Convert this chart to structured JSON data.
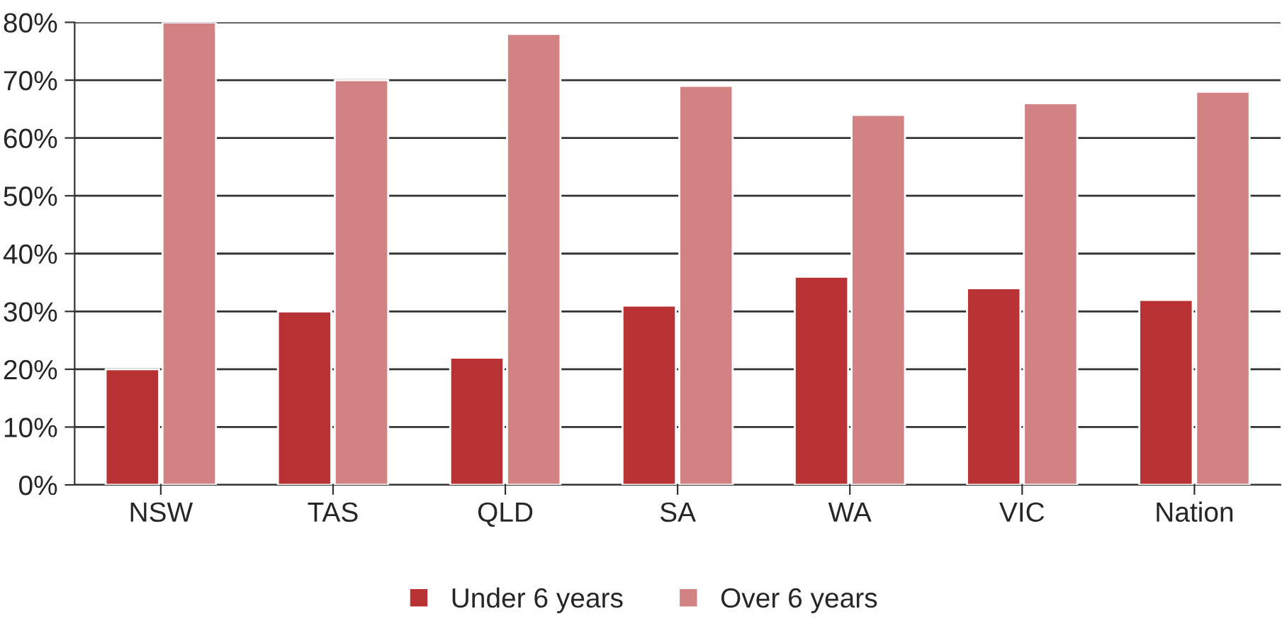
{
  "chart_data": {
    "type": "bar",
    "categories": [
      "NSW",
      "TAS",
      "QLD",
      "SA",
      "WA",
      "VIC",
      "Nation"
    ],
    "series": [
      {
        "name": "Under 6 years",
        "color": "#b83234",
        "values": [
          20,
          30,
          22,
          31,
          36,
          34,
          32
        ]
      },
      {
        "name": "Over 6 years",
        "color": "#d28282",
        "values": [
          80,
          70,
          78,
          69,
          64,
          66,
          68
        ]
      }
    ],
    "ylim": [
      0,
      80
    ],
    "yticks": [
      {
        "value": 0,
        "label": "0%"
      },
      {
        "value": 10,
        "label": "10%"
      },
      {
        "value": 20,
        "label": "20%"
      },
      {
        "value": 30,
        "label": "30%"
      },
      {
        "value": 40,
        "label": "40%"
      },
      {
        "value": 50,
        "label": "50%"
      },
      {
        "value": 60,
        "label": "60%"
      },
      {
        "value": 70,
        "label": "70%"
      },
      {
        "value": 80,
        "label": "80%"
      }
    ],
    "grid": "y",
    "legend": "bottom"
  }
}
